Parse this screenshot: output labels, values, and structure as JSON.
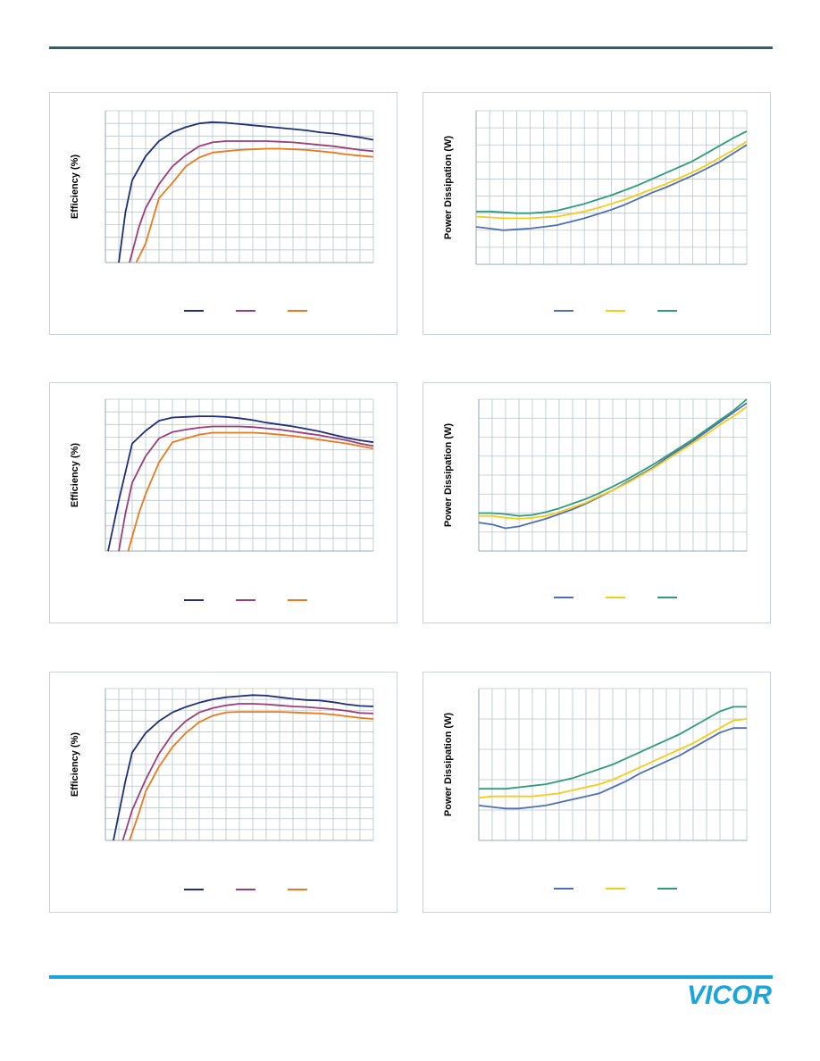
{
  "colors": {
    "header_rule": "#3e5a66",
    "footer_rule": "#1aa6dc",
    "logo": "#1aa6dc",
    "grid": "#b8c6cc",
    "eff_series": [
      "#1f2d7a",
      "#9b3d7a",
      "#e87a1e"
    ],
    "pd_series": [
      "#4f6fb5",
      "#f5cc1a",
      "#2e9b7a"
    ]
  },
  "logo": {
    "text": "VICOR"
  },
  "chart_data": [
    {
      "type": "line",
      "ylabel": "Efficiency (%)",
      "xlim": [
        0,
        20
      ],
      "ylim": [
        0,
        12
      ],
      "grid": true,
      "legend": "bottom-center",
      "series": [
        {
          "x": [
            1.0,
            1.5,
            2,
            3,
            4,
            5,
            6,
            7,
            8,
            9,
            10,
            11,
            12,
            13,
            14,
            15,
            16,
            17,
            18,
            19,
            20
          ],
          "values": [
            0,
            4,
            6.5,
            8.4,
            9.6,
            10.3,
            10.7,
            11.0,
            11.1,
            11.05,
            10.95,
            10.85,
            10.75,
            10.65,
            10.55,
            10.45,
            10.3,
            10.2,
            10.05,
            9.9,
            9.7
          ]
        },
        {
          "x": [
            1.8,
            2.5,
            3,
            4,
            5,
            6,
            7,
            8,
            9,
            10,
            11,
            12,
            13,
            14,
            15,
            16,
            17,
            18,
            19,
            20
          ],
          "values": [
            0,
            2.8,
            4.3,
            6.2,
            7.6,
            8.5,
            9.2,
            9.5,
            9.6,
            9.6,
            9.6,
            9.6,
            9.55,
            9.5,
            9.4,
            9.3,
            9.2,
            9.05,
            8.9,
            8.8
          ]
        },
        {
          "x": [
            2.3,
            3,
            4,
            5,
            6,
            7,
            8,
            9,
            10,
            11,
            12,
            13,
            14,
            15,
            16,
            17,
            18,
            19,
            20
          ],
          "values": [
            0,
            1.5,
            5.1,
            6.3,
            7.6,
            8.3,
            8.7,
            8.8,
            8.9,
            8.95,
            9.0,
            9.0,
            8.95,
            8.9,
            8.8,
            8.7,
            8.55,
            8.45,
            8.35
          ]
        }
      ]
    },
    {
      "type": "line",
      "ylabel": "Power Dissipation (W)",
      "xlim": [
        0,
        20
      ],
      "ylim": [
        0,
        9
      ],
      "grid": true,
      "legend": "bottom-center",
      "series": [
        {
          "x": [
            0,
            1,
            2,
            3,
            4,
            5,
            6,
            7,
            8,
            9,
            10,
            11,
            12,
            13,
            14,
            15,
            16,
            17,
            18,
            19,
            20
          ],
          "values": [
            2.2,
            2.1,
            2.0,
            2.05,
            2.1,
            2.2,
            2.3,
            2.5,
            2.7,
            2.95,
            3.2,
            3.5,
            3.85,
            4.2,
            4.5,
            4.85,
            5.2,
            5.6,
            6.0,
            6.5,
            7.0
          ]
        },
        {
          "x": [
            0,
            1,
            2,
            3,
            4,
            5,
            6,
            7,
            8,
            9,
            10,
            11,
            12,
            13,
            14,
            15,
            16,
            17,
            18,
            19,
            20
          ],
          "values": [
            2.8,
            2.75,
            2.7,
            2.7,
            2.7,
            2.75,
            2.8,
            2.95,
            3.1,
            3.3,
            3.55,
            3.8,
            4.1,
            4.4,
            4.7,
            5.05,
            5.4,
            5.8,
            6.25,
            6.7,
            7.2
          ]
        },
        {
          "x": [
            0,
            1,
            2,
            3,
            4,
            5,
            6,
            7,
            8,
            9,
            10,
            11,
            12,
            13,
            14,
            15,
            16,
            17,
            18,
            19,
            20
          ],
          "values": [
            3.1,
            3.1,
            3.05,
            3.0,
            3.0,
            3.05,
            3.15,
            3.35,
            3.55,
            3.8,
            4.05,
            4.35,
            4.65,
            5.0,
            5.35,
            5.7,
            6.05,
            6.5,
            6.95,
            7.4,
            7.8
          ]
        }
      ]
    },
    {
      "type": "line",
      "ylabel": "Efficiency (%)",
      "xlim": [
        0,
        20
      ],
      "ylim": [
        0,
        12
      ],
      "grid": true,
      "legend": "bottom-center",
      "series": [
        {
          "x": [
            0.2,
            1,
            2,
            3,
            4,
            5,
            6,
            7,
            8,
            9,
            10,
            11,
            12,
            13,
            14,
            15,
            16,
            17,
            18,
            19,
            20
          ],
          "values": [
            0,
            4,
            8.5,
            9.5,
            10.3,
            10.55,
            10.6,
            10.65,
            10.65,
            10.6,
            10.5,
            10.35,
            10.15,
            10.0,
            9.85,
            9.65,
            9.45,
            9.2,
            8.95,
            8.75,
            8.6
          ]
        },
        {
          "x": [
            1.0,
            1.5,
            2,
            3,
            4,
            5,
            6,
            7,
            8,
            9,
            10,
            11,
            12,
            13,
            14,
            15,
            16,
            17,
            18,
            19,
            20
          ],
          "values": [
            0,
            3,
            5.4,
            7.5,
            8.9,
            9.4,
            9.6,
            9.75,
            9.85,
            9.85,
            9.85,
            9.8,
            9.7,
            9.6,
            9.45,
            9.3,
            9.15,
            8.95,
            8.75,
            8.5,
            8.3
          ]
        },
        {
          "x": [
            1.7,
            2.5,
            3,
            4,
            5,
            6,
            7,
            8,
            9,
            10,
            11,
            12,
            13,
            14,
            15,
            16,
            17,
            18,
            19,
            20
          ],
          "values": [
            0,
            3,
            4.5,
            7.0,
            8.6,
            8.9,
            9.2,
            9.35,
            9.35,
            9.35,
            9.35,
            9.3,
            9.2,
            9.1,
            8.95,
            8.8,
            8.65,
            8.5,
            8.3,
            8.1
          ]
        }
      ]
    },
    {
      "type": "line",
      "ylabel": "Power Dissipation (W)",
      "xlim": [
        0,
        20
      ],
      "ylim": [
        0,
        8
      ],
      "grid": true,
      "legend": "bottom-center",
      "series": [
        {
          "x": [
            0,
            1,
            2,
            3,
            4,
            5,
            6,
            7,
            8,
            9,
            10,
            11,
            12,
            13,
            14,
            15,
            16,
            17,
            18,
            19,
            20
          ],
          "values": [
            1.5,
            1.4,
            1.2,
            1.3,
            1.5,
            1.7,
            1.95,
            2.2,
            2.5,
            2.85,
            3.2,
            3.6,
            4.0,
            4.4,
            4.9,
            5.35,
            5.8,
            6.3,
            6.8,
            7.3,
            7.8
          ]
        },
        {
          "x": [
            0,
            1,
            2,
            3,
            4,
            5,
            6,
            7,
            8,
            9,
            10,
            11,
            12,
            13,
            14,
            15,
            16,
            17,
            18,
            19,
            20
          ],
          "values": [
            1.85,
            1.85,
            1.75,
            1.7,
            1.75,
            1.85,
            2.05,
            2.3,
            2.55,
            2.9,
            3.2,
            3.55,
            3.95,
            4.35,
            4.8,
            5.25,
            5.7,
            6.15,
            6.65,
            7.1,
            7.6
          ]
        },
        {
          "x": [
            0,
            1,
            2,
            3,
            4,
            5,
            6,
            7,
            8,
            9,
            10,
            11,
            12,
            13,
            14,
            15,
            16,
            17,
            18,
            19,
            20
          ],
          "values": [
            2.0,
            2.0,
            1.95,
            1.85,
            1.9,
            2.05,
            2.25,
            2.5,
            2.75,
            3.05,
            3.4,
            3.75,
            4.15,
            4.55,
            5.0,
            5.45,
            5.9,
            6.4,
            6.9,
            7.4,
            8.0
          ]
        }
      ]
    },
    {
      "type": "line",
      "ylabel": "Efficiency (%)",
      "xlim": [
        0,
        20
      ],
      "ylim": [
        0,
        14
      ],
      "grid": true,
      "legend": "bottom-center",
      "series": [
        {
          "x": [
            0.6,
            1.5,
            2,
            3,
            4,
            5,
            6,
            7,
            8,
            9,
            10,
            11,
            12,
            13,
            14,
            15,
            16,
            17,
            18,
            19,
            20
          ],
          "values": [
            0,
            5.5,
            8.1,
            9.9,
            11.0,
            11.8,
            12.3,
            12.7,
            13.0,
            13.2,
            13.3,
            13.4,
            13.35,
            13.2,
            13.05,
            12.95,
            12.9,
            12.75,
            12.55,
            12.4,
            12.35
          ]
        },
        {
          "x": [
            1.3,
            2,
            3,
            4,
            5,
            6,
            7,
            8,
            9,
            10,
            11,
            12,
            13,
            14,
            15,
            16,
            17,
            18,
            19,
            20
          ],
          "values": [
            0,
            2.8,
            5.6,
            8.0,
            9.8,
            11.0,
            11.8,
            12.2,
            12.45,
            12.6,
            12.6,
            12.55,
            12.45,
            12.35,
            12.3,
            12.2,
            12.1,
            11.95,
            11.75,
            11.7
          ]
        },
        {
          "x": [
            1.8,
            2.5,
            3,
            4,
            5,
            6,
            7,
            8,
            9,
            10,
            11,
            12,
            13,
            14,
            15,
            16,
            17,
            18,
            19,
            20
          ],
          "values": [
            0,
            2.5,
            4.5,
            6.8,
            8.6,
            9.9,
            10.9,
            11.5,
            11.8,
            11.85,
            11.85,
            11.85,
            11.85,
            11.8,
            11.75,
            11.7,
            11.6,
            11.45,
            11.3,
            11.2
          ]
        }
      ]
    },
    {
      "type": "line",
      "ylabel": "Power Dissipation (W)",
      "xlim": [
        0,
        20
      ],
      "ylim": [
        0,
        5
      ],
      "grid": true,
      "legend": "bottom-center",
      "series": [
        {
          "x": [
            0,
            1,
            2,
            3,
            4,
            5,
            6,
            7,
            8,
            9,
            10,
            11,
            12,
            13,
            14,
            15,
            16,
            17,
            18,
            19,
            20
          ],
          "values": [
            1.15,
            1.1,
            1.05,
            1.05,
            1.1,
            1.15,
            1.25,
            1.35,
            1.45,
            1.55,
            1.75,
            1.95,
            2.2,
            2.4,
            2.6,
            2.8,
            3.05,
            3.3,
            3.55,
            3.7,
            3.7
          ]
        },
        {
          "x": [
            0,
            1,
            2,
            3,
            4,
            5,
            6,
            7,
            8,
            9,
            10,
            11,
            12,
            13,
            14,
            15,
            16,
            17,
            18,
            19,
            20
          ],
          "values": [
            1.4,
            1.45,
            1.45,
            1.45,
            1.45,
            1.5,
            1.55,
            1.65,
            1.75,
            1.85,
            2.0,
            2.2,
            2.4,
            2.6,
            2.8,
            3.0,
            3.2,
            3.45,
            3.7,
            3.95,
            4.0
          ]
        },
        {
          "x": [
            0,
            1,
            2,
            3,
            4,
            5,
            6,
            7,
            8,
            9,
            10,
            11,
            12,
            13,
            14,
            15,
            16,
            17,
            18,
            19,
            20
          ],
          "values": [
            1.7,
            1.7,
            1.7,
            1.75,
            1.8,
            1.85,
            1.95,
            2.05,
            2.2,
            2.35,
            2.5,
            2.7,
            2.9,
            3.1,
            3.3,
            3.5,
            3.75,
            4.0,
            4.25,
            4.4,
            4.4
          ]
        }
      ]
    }
  ]
}
